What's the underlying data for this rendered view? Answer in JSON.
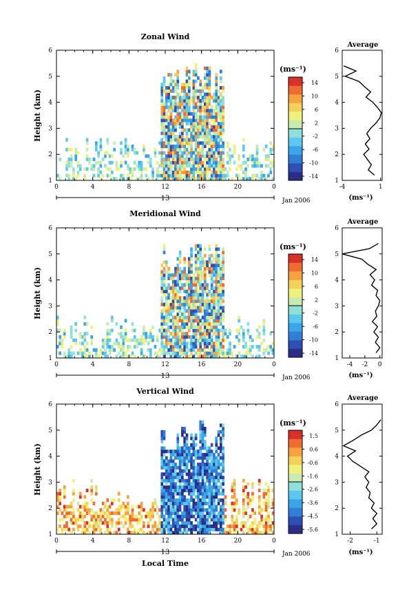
{
  "figure": {
    "date_label": "Jan 2006",
    "colorbar_unit": "(ms⁻¹)",
    "avg_unit": "(ms⁻¹)",
    "colors": [
      "#2b2e86",
      "#2f4fb4",
      "#2f7fd6",
      "#3aa6e8",
      "#5cc8ee",
      "#8fe0d8",
      "#c8ecb0",
      "#eef27a",
      "#f6d15a",
      "#f5a23f",
      "#ef6b32",
      "#d9302a"
    ]
  },
  "chart_data": [
    {
      "type": "heatmap",
      "title": "Zonal Wind",
      "ylabel": "Height (km)",
      "xlabel": "",
      "x_ticks": [
        "0",
        "4",
        "8",
        "12",
        "16",
        "20",
        "0"
      ],
      "xlim": [
        0,
        24
      ],
      "ylim": [
        1,
        6
      ],
      "y_ticks": [
        "1",
        "2",
        "3",
        "4",
        "5",
        "6"
      ],
      "day_label": "13",
      "colorbar": {
        "ticks": [
          "14",
          "10",
          "6",
          "2",
          "-2",
          "-6",
          "-10",
          "-14"
        ],
        "range": [
          -16,
          16
        ]
      },
      "profile": {
        "title": "Average",
        "x_ticks": [
          "-4",
          "1"
        ],
        "xlim": [
          -4,
          1.2
        ],
        "heights": [
          1.2,
          1.4,
          1.6,
          1.8,
          2.0,
          2.2,
          2.4,
          2.6,
          2.8,
          3.0,
          3.2,
          3.4,
          3.6,
          3.8,
          4.0,
          4.2,
          4.4,
          4.6,
          4.8,
          5.0,
          5.2,
          5.4
        ],
        "values": [
          0.2,
          -0.6,
          -0.2,
          -0.7,
          -1.2,
          -0.5,
          -1.0,
          -0.4,
          -0.8,
          -0.3,
          0.4,
          0.9,
          1.1,
          0.6,
          0.0,
          -0.9,
          -0.3,
          -1.1,
          -1.8,
          -3.6,
          -2.2,
          -3.8
        ]
      }
    },
    {
      "type": "heatmap",
      "title": "Meridional Wind",
      "ylabel": "Height (km)",
      "xlabel": "",
      "x_ticks": [
        "0",
        "4",
        "8",
        "12",
        "16",
        "20",
        "0"
      ],
      "xlim": [
        0,
        24
      ],
      "ylim": [
        1,
        6
      ],
      "y_ticks": [
        "1",
        "2",
        "3",
        "4",
        "5",
        "6"
      ],
      "day_label": "13",
      "colorbar": {
        "ticks": [
          "14",
          "10",
          "6",
          "2",
          "-2",
          "-6",
          "-10",
          "-14"
        ],
        "range": [
          -16,
          16
        ]
      },
      "profile": {
        "title": "Average",
        "x_ticks": [
          "-4",
          "-2",
          "0"
        ],
        "xlim": [
          -5,
          0.3
        ],
        "heights": [
          1.2,
          1.4,
          1.6,
          1.8,
          2.0,
          2.2,
          2.4,
          2.6,
          2.8,
          3.0,
          3.2,
          3.4,
          3.6,
          3.8,
          4.0,
          4.2,
          4.4,
          4.6,
          4.8,
          5.0,
          5.2,
          5.4
        ],
        "values": [
          -0.5,
          0.0,
          -0.6,
          -0.2,
          -0.8,
          -0.3,
          -1.0,
          -0.4,
          -0.6,
          -0.2,
          0.0,
          -0.5,
          -0.3,
          -1.1,
          -0.7,
          -1.3,
          -0.5,
          -1.6,
          -2.4,
          -5.0,
          -1.4,
          -0.2
        ]
      }
    },
    {
      "type": "heatmap",
      "title": "Vertical Wind",
      "ylabel": "Height (km)",
      "xlabel": "Local Time",
      "x_ticks": [
        "0",
        "4",
        "8",
        "12",
        "16",
        "20",
        "0"
      ],
      "xlim": [
        0,
        24
      ],
      "ylim": [
        1,
        6
      ],
      "y_ticks": [
        "1",
        "2",
        "3",
        "4",
        "5",
        "6"
      ],
      "day_label": "13",
      "colorbar": {
        "ticks": [
          "1.5",
          "0.6",
          "-0.6",
          "-1.6",
          "-2.6",
          "-3.6",
          "-4.5",
          "-5.6"
        ],
        "range": [
          -6.1,
          2.0
        ]
      },
      "profile": {
        "title": "Average",
        "x_ticks": [
          "-2",
          "-1"
        ],
        "xlim": [
          -2.3,
          -0.8
        ],
        "heights": [
          1.2,
          1.4,
          1.6,
          1.8,
          2.0,
          2.2,
          2.4,
          2.6,
          2.8,
          3.0,
          3.2,
          3.4,
          3.6,
          3.8,
          4.0,
          4.2,
          4.4,
          4.6,
          4.8,
          5.0,
          5.2,
          5.4
        ],
        "values": [
          -1.2,
          -1.0,
          -1.15,
          -1.0,
          -1.2,
          -1.1,
          -1.3,
          -1.25,
          -1.4,
          -1.3,
          -1.45,
          -1.3,
          -1.6,
          -1.9,
          -2.1,
          -1.8,
          -2.25,
          -1.9,
          -1.6,
          -1.2,
          -1.0,
          -0.85
        ]
      }
    }
  ]
}
